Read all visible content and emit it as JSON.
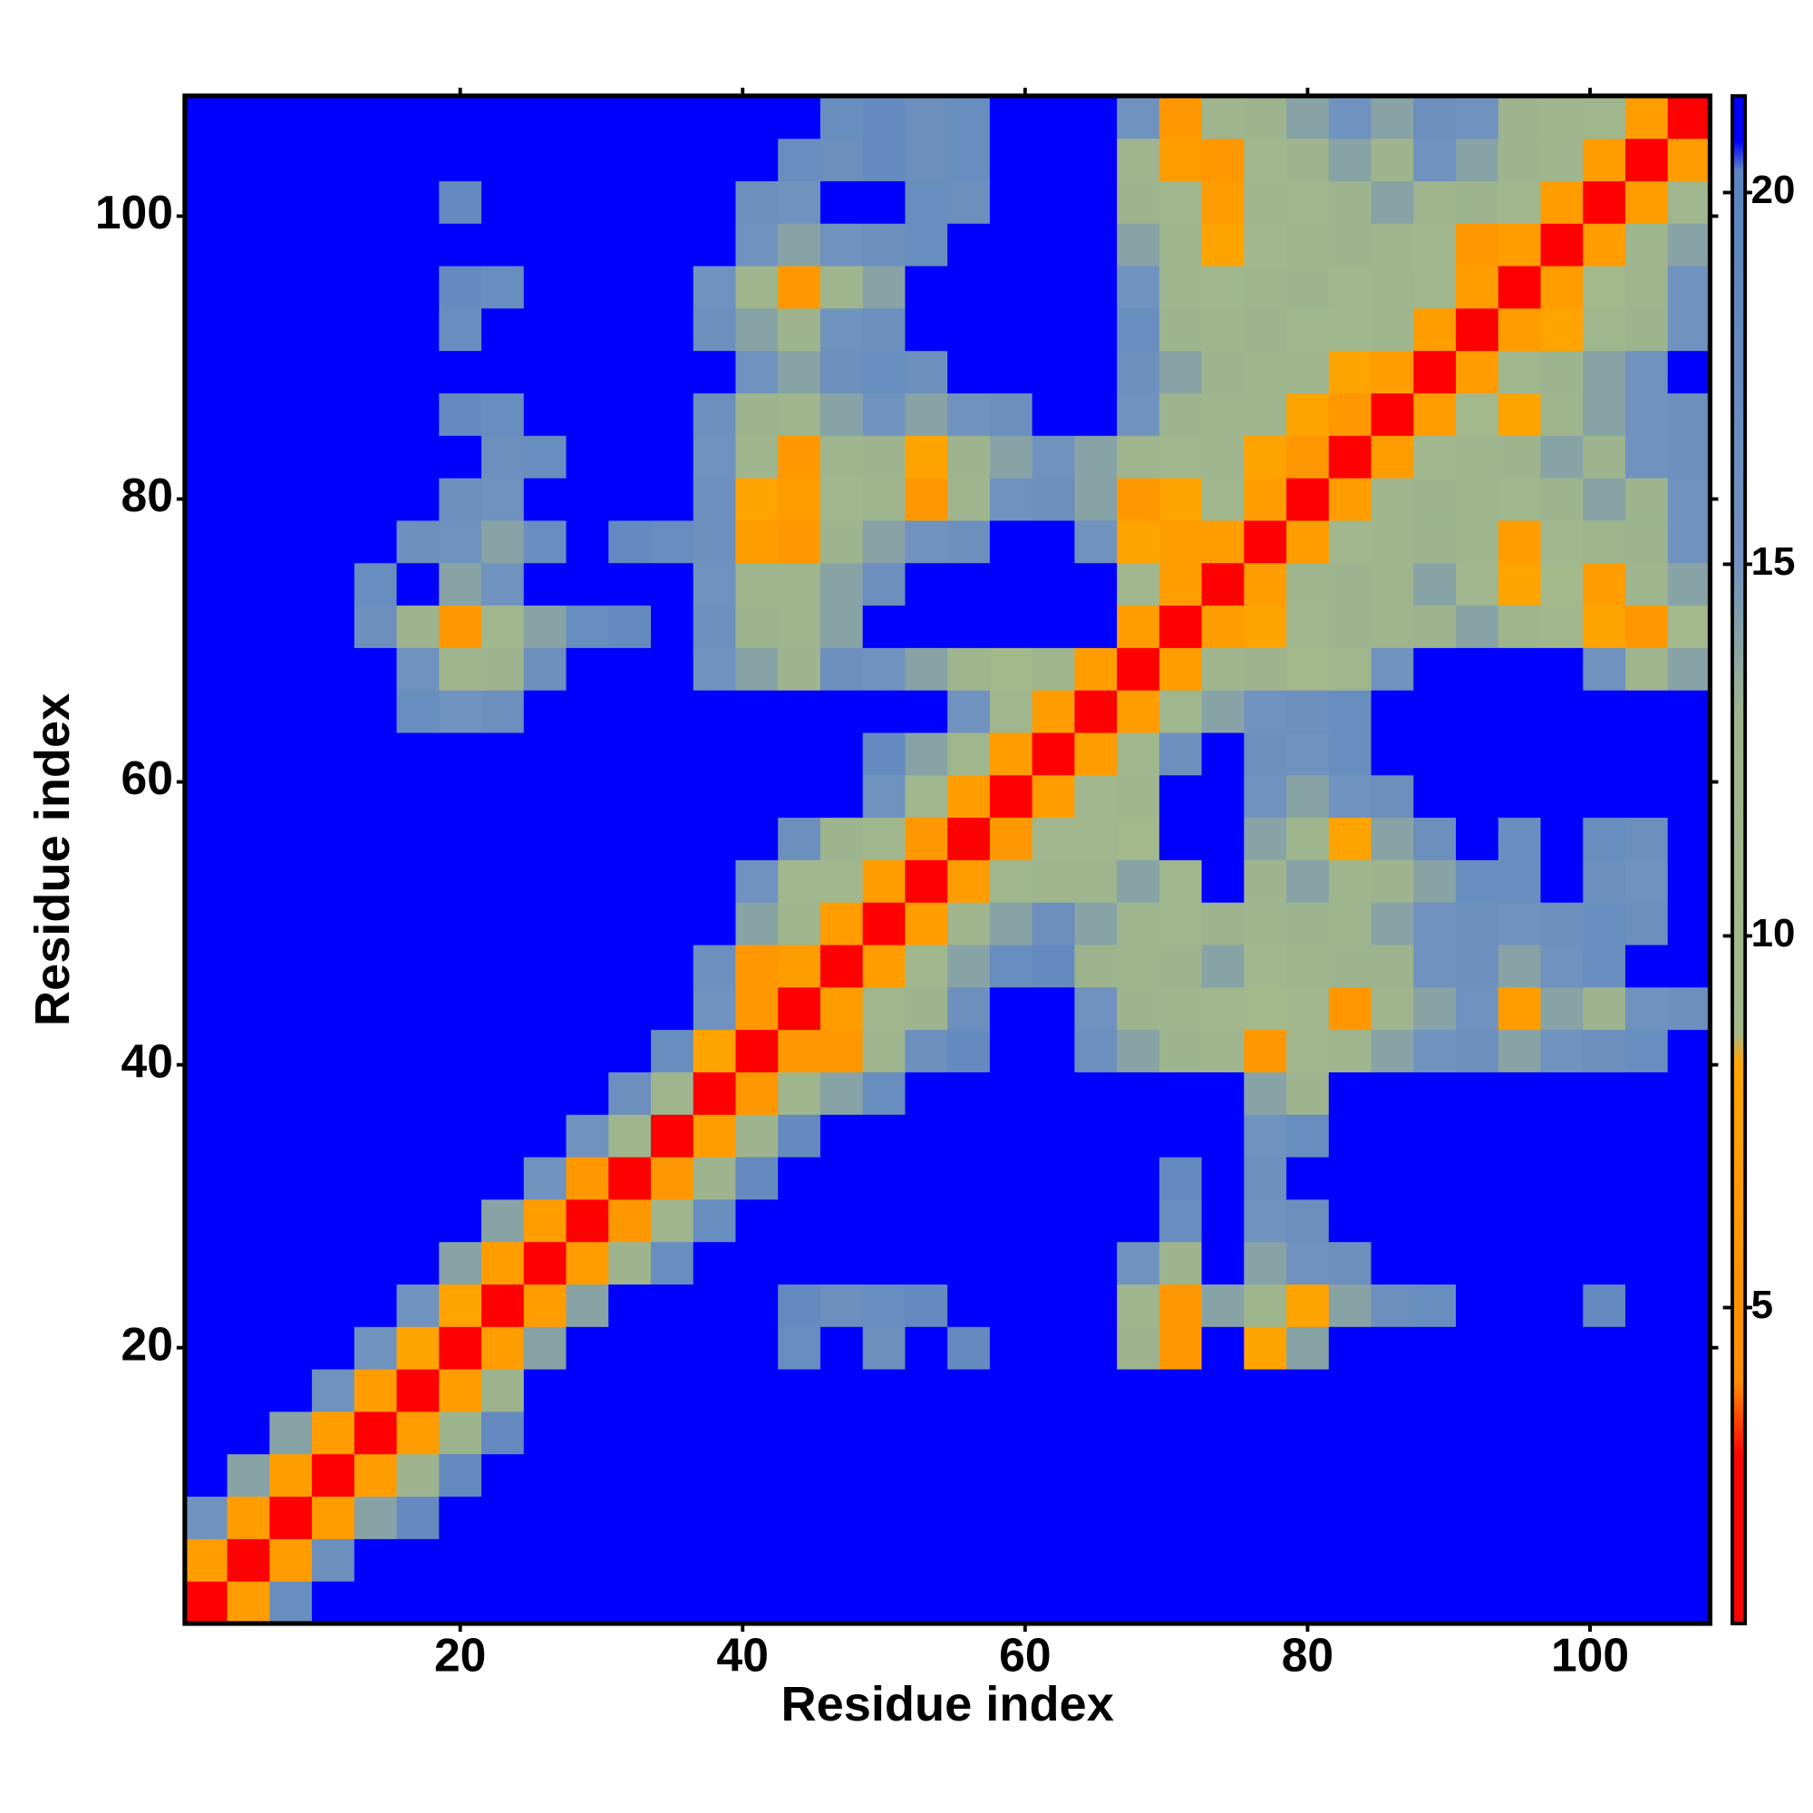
{
  "chart_data": {
    "type": "heatmap",
    "xlabel": "Residue index",
    "ylabel": "Residue index",
    "xlim": [
      0.5,
      108.5
    ],
    "ylim": [
      0.5,
      108.5
    ],
    "xticks": [
      20,
      40,
      60,
      80,
      100
    ],
    "yticks": [
      20,
      40,
      60,
      80,
      100
    ],
    "x": [
      2,
      5,
      8,
      11,
      14,
      17,
      20,
      23,
      26,
      29,
      32,
      35,
      38,
      41,
      44,
      47,
      50,
      53,
      56,
      59,
      62,
      65,
      68,
      71,
      74,
      77,
      80,
      83,
      86,
      89,
      92,
      95,
      98,
      101,
      104,
      107
    ],
    "y": [
      2,
      5,
      8,
      11,
      14,
      17,
      20,
      23,
      26,
      29,
      32,
      35,
      38,
      41,
      44,
      47,
      50,
      53,
      56,
      59,
      62,
      65,
      68,
      71,
      74,
      77,
      80,
      83,
      86,
      89,
      92,
      95,
      98,
      101,
      104,
      107
    ],
    "z": [
      [
        1,
        7,
        17,
        21,
        21,
        21,
        21,
        21,
        21,
        21,
        21,
        21,
        21,
        21,
        21,
        21,
        21,
        21,
        21,
        21,
        21,
        21,
        21,
        21,
        21,
        21,
        21,
        21,
        21,
        21,
        21,
        21,
        21,
        21,
        21,
        21
      ],
      [
        7,
        1,
        7,
        16,
        21,
        21,
        21,
        21,
        21,
        21,
        21,
        21,
        21,
        21,
        21,
        21,
        21,
        21,
        21,
        21,
        21,
        21,
        21,
        21,
        21,
        21,
        21,
        21,
        21,
        21,
        21,
        21,
        21,
        21,
        21,
        21
      ],
      [
        15,
        7,
        1,
        7,
        14,
        18,
        21,
        21,
        21,
        21,
        21,
        21,
        21,
        21,
        21,
        21,
        21,
        21,
        21,
        21,
        21,
        21,
        21,
        21,
        21,
        21,
        21,
        21,
        21,
        21,
        21,
        21,
        21,
        21,
        21,
        21
      ],
      [
        21,
        14,
        7,
        1,
        7,
        13,
        18,
        21,
        21,
        21,
        21,
        21,
        21,
        21,
        21,
        21,
        21,
        21,
        21,
        21,
        21,
        21,
        21,
        21,
        21,
        21,
        21,
        21,
        21,
        21,
        21,
        21,
        21,
        21,
        21,
        21
      ],
      [
        21,
        21,
        14,
        7,
        1,
        7,
        13,
        18,
        21,
        21,
        21,
        21,
        21,
        21,
        21,
        21,
        21,
        21,
        21,
        21,
        21,
        21,
        21,
        21,
        21,
        21,
        21,
        21,
        21,
        21,
        21,
        21,
        21,
        21,
        21,
        21
      ],
      [
        21,
        21,
        21,
        15,
        7,
        1,
        7,
        13,
        21,
        21,
        21,
        21,
        21,
        21,
        21,
        21,
        21,
        21,
        21,
        21,
        21,
        21,
        21,
        21,
        21,
        21,
        21,
        21,
        21,
        21,
        21,
        21,
        21,
        21,
        21,
        21
      ],
      [
        21,
        21,
        21,
        21,
        15,
        8,
        1,
        7,
        14,
        21,
        21,
        21,
        21,
        21,
        17,
        21,
        16,
        21,
        18,
        21,
        21,
        21,
        13,
        6,
        21,
        8,
        14,
        21,
        21,
        21,
        21,
        21,
        21,
        21,
        21,
        21
      ],
      [
        21,
        21,
        21,
        21,
        21,
        15,
        8,
        1,
        7,
        14,
        21,
        21,
        21,
        21,
        18,
        16,
        17,
        18,
        21,
        21,
        21,
        21,
        12,
        6,
        14,
        12,
        8,
        14,
        16,
        17,
        21,
        21,
        21,
        18,
        21,
        21
      ],
      [
        21,
        21,
        21,
        21,
        21,
        21,
        14,
        7,
        1,
        7,
        13,
        17,
        21,
        21,
        21,
        21,
        21,
        21,
        21,
        21,
        21,
        21,
        15,
        13,
        21,
        14,
        15,
        16,
        21,
        21,
        21,
        21,
        21,
        21,
        21,
        21
      ],
      [
        21,
        21,
        21,
        21,
        21,
        21,
        21,
        14,
        7,
        1,
        6,
        12,
        17,
        21,
        21,
        21,
        21,
        21,
        21,
        21,
        21,
        21,
        21,
        17,
        21,
        15,
        16,
        21,
        21,
        21,
        21,
        21,
        21,
        21,
        21,
        21
      ],
      [
        21,
        21,
        21,
        21,
        21,
        21,
        21,
        21,
        15,
        6,
        1,
        6,
        13,
        18,
        21,
        21,
        21,
        21,
        21,
        21,
        21,
        21,
        21,
        18,
        21,
        16,
        21,
        21,
        21,
        21,
        21,
        21,
        21,
        21,
        21,
        21
      ],
      [
        21,
        21,
        21,
        21,
        21,
        21,
        21,
        21,
        21,
        15,
        12,
        1,
        7,
        13,
        18,
        21,
        21,
        21,
        21,
        21,
        21,
        21,
        21,
        21,
        21,
        15,
        17,
        21,
        21,
        21,
        21,
        21,
        21,
        21,
        21,
        21
      ],
      [
        21,
        21,
        21,
        21,
        21,
        21,
        21,
        21,
        21,
        21,
        16,
        12,
        1,
        6,
        12,
        14,
        17,
        21,
        21,
        21,
        21,
        21,
        21,
        21,
        21,
        14,
        13,
        21,
        21,
        21,
        21,
        21,
        21,
        21,
        21,
        21
      ],
      [
        21,
        21,
        21,
        21,
        21,
        21,
        21,
        21,
        21,
        21,
        21,
        17,
        8,
        1,
        6,
        6,
        12,
        16,
        18,
        21,
        21,
        16,
        14,
        13,
        12,
        6,
        10,
        12,
        14,
        15,
        16,
        14,
        15,
        16,
        17,
        21
      ],
      [
        21,
        21,
        21,
        21,
        21,
        21,
        21,
        21,
        21,
        21,
        21,
        21,
        15,
        6,
        1,
        7,
        11,
        13,
        16,
        21,
        21,
        15,
        13,
        12,
        11,
        9,
        10,
        6,
        12,
        14,
        15,
        7,
        14,
        13,
        15,
        16
      ],
      [
        21,
        21,
        21,
        21,
        21,
        21,
        21,
        21,
        21,
        21,
        21,
        21,
        16,
        6,
        7,
        1,
        7,
        11,
        14,
        17,
        18,
        13,
        12,
        13,
        14,
        10,
        12,
        13,
        13,
        15,
        16,
        14,
        15,
        17,
        21,
        21
      ],
      [
        21,
        21,
        21,
        21,
        21,
        21,
        21,
        21,
        21,
        21,
        21,
        21,
        21,
        14,
        12,
        7,
        1,
        7,
        12,
        14,
        16,
        14,
        12,
        11,
        13,
        12,
        13,
        12,
        14,
        15,
        16,
        15,
        16,
        17,
        16,
        21
      ],
      [
        21,
        21,
        21,
        21,
        21,
        21,
        21,
        21,
        21,
        21,
        21,
        21,
        21,
        15,
        11,
        10,
        7,
        1,
        7,
        11,
        12,
        12,
        14,
        11,
        21,
        13,
        14,
        12,
        13,
        14,
        17,
        17,
        21,
        16,
        15,
        21
      ],
      [
        21,
        21,
        21,
        21,
        21,
        21,
        21,
        21,
        21,
        21,
        21,
        21,
        21,
        21,
        16,
        13,
        10,
        6,
        1,
        6,
        10,
        11,
        9,
        21,
        21,
        14,
        12,
        8,
        14,
        16,
        21,
        17,
        21,
        17,
        16,
        21
      ],
      [
        21,
        21,
        21,
        21,
        21,
        21,
        21,
        21,
        21,
        21,
        21,
        21,
        21,
        21,
        21,
        21,
        15,
        10,
        7,
        1,
        7,
        10,
        12,
        21,
        21,
        15,
        14,
        15,
        16,
        21,
        21,
        21,
        21,
        21,
        21,
        21
      ],
      [
        21,
        21,
        21,
        21,
        21,
        21,
        21,
        21,
        21,
        21,
        21,
        21,
        21,
        21,
        21,
        21,
        18,
        14,
        11,
        7,
        1,
        7,
        11,
        16,
        21,
        16,
        15,
        17,
        21,
        21,
        21,
        21,
        21,
        21,
        21,
        21
      ],
      [
        21,
        21,
        21,
        21,
        21,
        17,
        15,
        16,
        21,
        21,
        21,
        21,
        21,
        21,
        21,
        21,
        21,
        21,
        15,
        11,
        7,
        1,
        7,
        11,
        14,
        15,
        16,
        17,
        21,
        21,
        21,
        21,
        21,
        21,
        21,
        21
      ],
      [
        21,
        21,
        21,
        21,
        21,
        15,
        12,
        13,
        16,
        21,
        21,
        21,
        15,
        14,
        13,
        16,
        15,
        14,
        12,
        9,
        12,
        7,
        1,
        7,
        12,
        13,
        9,
        11,
        15,
        21,
        21,
        21,
        21,
        15,
        12,
        14
      ],
      [
        21,
        21,
        21,
        21,
        16,
        13,
        6,
        10,
        14,
        17,
        18,
        21,
        16,
        13,
        12,
        14,
        21,
        21,
        21,
        21,
        21,
        21,
        7,
        1,
        7,
        8,
        11,
        13,
        12,
        13,
        14,
        12,
        10,
        8,
        6,
        9
      ],
      [
        21,
        21,
        21,
        21,
        17,
        21,
        14,
        15,
        21,
        21,
        21,
        21,
        15,
        12,
        12,
        14,
        16,
        21,
        21,
        21,
        21,
        21,
        11,
        7,
        1,
        7,
        12,
        13,
        12,
        14,
        11,
        8,
        9,
        7,
        12,
        14
      ],
      [
        21,
        21,
        21,
        21,
        21,
        16,
        15,
        14,
        17,
        21,
        18,
        17,
        16,
        7,
        6,
        13,
        14,
        15,
        16,
        21,
        21,
        15,
        8,
        7,
        7,
        1,
        7,
        11,
        12,
        13,
        12,
        7,
        10,
        12,
        13,
        15
      ],
      [
        21,
        21,
        21,
        21,
        21,
        21,
        16,
        15,
        21,
        21,
        21,
        21,
        16,
        8,
        7,
        10,
        12,
        6,
        12,
        15,
        16,
        14,
        6,
        8,
        11,
        7,
        1,
        7,
        12,
        13,
        12,
        11,
        13,
        14,
        13,
        15
      ],
      [
        21,
        21,
        21,
        21,
        21,
        21,
        21,
        16,
        17,
        21,
        21,
        21,
        15,
        12,
        6,
        12,
        13,
        8,
        13,
        14,
        15,
        14,
        12,
        11,
        12,
        8,
        6,
        1,
        7,
        10,
        12,
        13,
        14,
        13,
        15,
        16
      ],
      [
        21,
        21,
        21,
        21,
        21,
        21,
        18,
        17,
        21,
        21,
        21,
        21,
        16,
        13,
        12,
        14,
        15,
        14,
        15,
        16,
        21,
        21,
        15,
        13,
        12,
        12,
        8,
        6,
        1,
        7,
        9,
        8,
        12,
        14,
        15,
        16
      ],
      [
        21,
        21,
        21,
        21,
        21,
        21,
        21,
        21,
        21,
        21,
        21,
        21,
        21,
        15,
        14,
        16,
        17,
        16,
        21,
        21,
        21,
        21,
        16,
        14,
        13,
        12,
        12,
        8,
        7,
        1,
        7,
        11,
        13,
        14,
        15,
        21
      ],
      [
        21,
        21,
        21,
        21,
        21,
        21,
        17,
        21,
        21,
        21,
        21,
        21,
        16,
        14,
        13,
        15,
        16,
        21,
        21,
        21,
        21,
        21,
        17,
        13,
        12,
        13,
        11,
        10,
        12,
        7,
        1,
        7,
        8,
        11,
        13,
        15
      ],
      [
        21,
        21,
        21,
        21,
        21,
        21,
        18,
        17,
        21,
        21,
        21,
        21,
        15,
        12,
        6,
        12,
        14,
        21,
        21,
        21,
        21,
        21,
        15,
        12,
        11,
        12,
        13,
        11,
        12,
        10,
        7,
        1,
        7,
        9,
        12,
        15
      ],
      [
        21,
        21,
        21,
        21,
        21,
        21,
        21,
        21,
        21,
        21,
        21,
        21,
        21,
        15,
        14,
        15,
        16,
        17,
        21,
        21,
        21,
        21,
        14,
        12,
        8,
        10,
        12,
        13,
        12,
        11,
        6,
        7,
        1,
        7,
        12,
        14
      ],
      [
        21,
        21,
        21,
        21,
        21,
        21,
        18,
        21,
        21,
        21,
        21,
        21,
        21,
        16,
        15,
        21,
        21,
        17,
        16,
        21,
        21,
        21,
        13,
        10,
        7,
        12,
        11,
        13,
        14,
        12,
        13,
        11,
        7,
        1,
        7,
        11
      ],
      [
        21,
        21,
        21,
        21,
        21,
        21,
        21,
        21,
        21,
        21,
        21,
        21,
        21,
        21,
        17,
        16,
        18,
        16,
        17,
        21,
        21,
        21,
        12,
        7,
        6,
        11,
        13,
        14,
        13,
        15,
        14,
        13,
        12,
        7,
        1,
        7
      ],
      [
        21,
        21,
        21,
        21,
        21,
        21,
        21,
        21,
        21,
        21,
        21,
        21,
        21,
        21,
        21,
        17,
        18,
        16,
        17,
        21,
        21,
        21,
        15,
        6,
        12,
        13,
        14,
        15,
        14,
        16,
        15,
        13,
        12,
        11,
        7,
        1
      ]
    ],
    "colorbar": {
      "lim": [
        0.75,
        21.3
      ],
      "ticks": [
        5,
        10,
        15,
        20
      ],
      "stops": [
        {
          "value": 0.75,
          "color": "#ff0000"
        },
        {
          "value": 3,
          "color": "#ff0000"
        },
        {
          "value": 4,
          "color": "#ff8c00"
        },
        {
          "value": 8.3,
          "color": "#ffa500"
        },
        {
          "value": 8.7,
          "color": "#a3b98c"
        },
        {
          "value": 13,
          "color": "#9db48e"
        },
        {
          "value": 15,
          "color": "#7092be"
        },
        {
          "value": 20.3,
          "color": "#5b84c0"
        },
        {
          "value": 20.7,
          "color": "#0000ff"
        },
        {
          "value": 21.3,
          "color": "#0000ff"
        }
      ]
    }
  }
}
